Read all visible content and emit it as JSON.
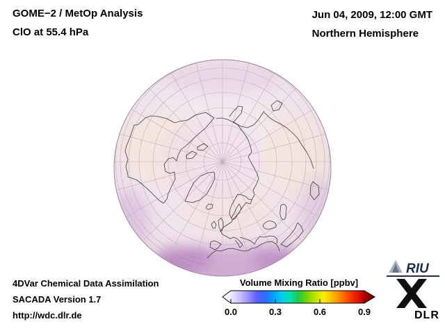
{
  "header": {
    "title": "GOME−2 / MetOp Analysis",
    "subtitle": "ClO at 55.4 hPa",
    "datetime": "Jun 04, 2009, 12:00 GMT",
    "region": "Northern Hemisphere"
  },
  "colorbar": {
    "title": "Volume Mixing Ratio [ppbv]",
    "ticks": [
      "0.0",
      "0.3",
      "0.6",
      "0.9"
    ],
    "unit": "ppbv",
    "gradient": [
      "#ffffff",
      "#efe9ff",
      "#cdc4ff",
      "#9a94ff",
      "#5f5fff",
      "#2e6cff",
      "#00a2ff",
      "#00ccec",
      "#00dfae",
      "#25c745",
      "#7cd300",
      "#c4e400",
      "#ffee00",
      "#ffb800",
      "#ff7e00",
      "#ff3f00",
      "#e31200",
      "#a30000",
      "#4d0000"
    ]
  },
  "credits": {
    "line1": "4DVar Chemical Data Assimilation",
    "line2": "SACADA Version 1.7",
    "line3": "http://wdc.dlr.de"
  },
  "logos": {
    "riu_label": "RIU",
    "dlr_label": "DLR"
  },
  "colors": {
    "map_base": "#f0e4ec",
    "map_high_shading": "#b57fc1",
    "map_warm_shading": "#f5e5d1",
    "graticule": "#c2afba",
    "coastline": "#3d3d3d",
    "text": "#000000"
  }
}
